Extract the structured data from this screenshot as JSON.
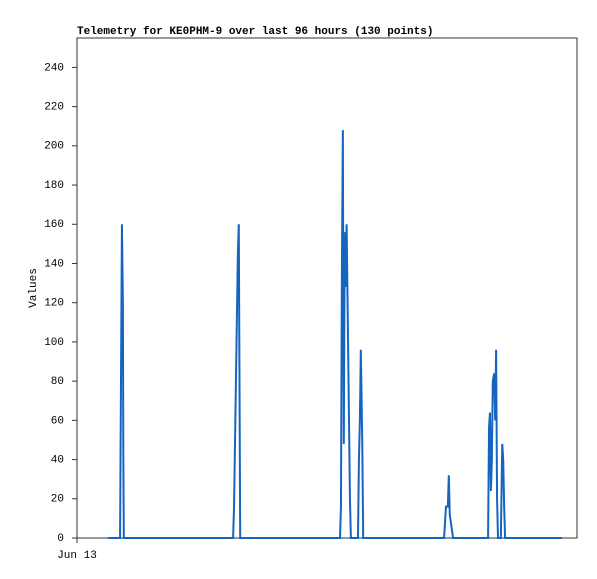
{
  "chart_data": {
    "type": "line",
    "title": "Telemetry for KE0PHM-9 over last 96 hours (130 points)",
    "y_label": "Values",
    "color": "#1565c0",
    "x": [
      6.6,
      9.1,
      9.3,
      9.5,
      9.7,
      9.8,
      9.9,
      33.0,
      33.2,
      33.4,
      33.6,
      33.8,
      34.0,
      34.2,
      34.5,
      55.6,
      55.8,
      56.0,
      56.2,
      56.4,
      56.6,
      56.8,
      57.0,
      57.3,
      57.5,
      57.7,
      57.9,
      59.4,
      59.6,
      59.8,
      60.0,
      60.3,
      60.5,
      77.6,
      78.0,
      78.4,
      78.6,
      78.8,
      79.5,
      86.9,
      87.1,
      87.3,
      87.5,
      87.7,
      87.9,
      88.2,
      88.4,
      88.6,
      88.8,
      89.0,
      89.6,
      89.9,
      90.1,
      90.3,
      90.5,
      102.5
    ],
    "values": [
      0,
      0,
      80,
      160,
      120,
      40,
      0,
      0,
      16,
      48,
      80,
      112,
      144,
      160,
      0,
      0,
      16,
      136,
      208,
      48,
      156,
      128,
      160,
      100,
      60,
      20,
      0,
      0,
      40,
      60,
      96,
      50,
      0,
      0,
      16,
      16,
      32,
      12,
      0,
      0,
      56,
      64,
      24,
      40,
      80,
      84,
      60,
      96,
      20,
      0,
      0,
      48,
      40,
      16,
      0,
      0
    ],
    "xlim": [
      0,
      105.7
    ],
    "xticks": [
      {
        "value": 0,
        "label": "Jun 13"
      }
    ],
    "ylim": [
      0,
      255
    ],
    "yticks": [
      0,
      20,
      40,
      60,
      80,
      100,
      120,
      140,
      160,
      180,
      200,
      220,
      240
    ]
  }
}
